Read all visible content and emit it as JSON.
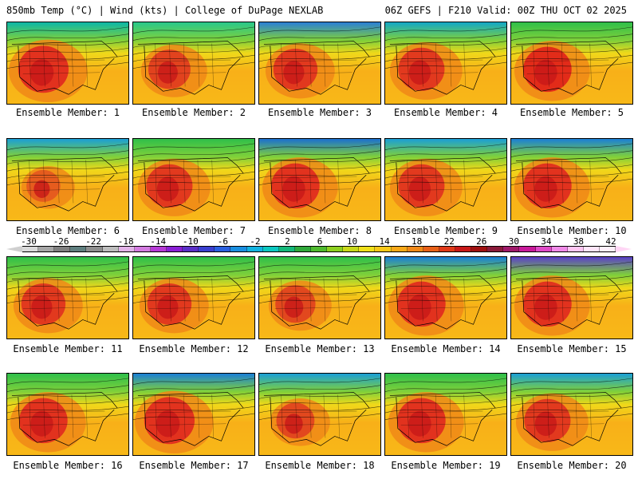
{
  "header": {
    "left": "850mb Temp (°C) | Wind (kts) | College of DuPage NEXLAB",
    "right": "06Z GEFS | F210 Valid: 00Z THU OCT 02 2025"
  },
  "panels": [
    {
      "caption": "Ensemble Member: 1",
      "north_color": "#0bb7a8",
      "hot": "#e0271f",
      "hot_extent": 1.0
    },
    {
      "caption": "Ensemble Member: 2",
      "north_color": "#28c88c",
      "hot": "#e03a1f",
      "hot_extent": 0.8
    },
    {
      "caption": "Ensemble Member: 3",
      "north_color": "#2a7fd6",
      "hot": "#e0301f",
      "hot_extent": 0.85
    },
    {
      "caption": "Ensemble Member: 4",
      "north_color": "#12a8c8",
      "hot": "#e0301f",
      "hot_extent": 0.9
    },
    {
      "caption": "Ensemble Member: 5",
      "north_color": "#2fbf4a",
      "hot": "#e0201a",
      "hot_extent": 0.95
    },
    {
      "caption": "Ensemble Member: 6",
      "north_color": "#1a9fd6",
      "hot": "#e4561f",
      "hot_extent": 0.6
    },
    {
      "caption": "Ensemble Member: 7",
      "north_color": "#2fbf4a",
      "hot": "#e0301f",
      "hot_extent": 0.9
    },
    {
      "caption": "Ensemble Member: 8",
      "north_color": "#1a6fd0",
      "hot": "#e0281f",
      "hot_extent": 0.95
    },
    {
      "caption": "Ensemble Member: 9",
      "north_color": "#1a9fd6",
      "hot": "#e0301f",
      "hot_extent": 0.9
    },
    {
      "caption": "Ensemble Member: 10",
      "north_color": "#1a7fd6",
      "hot": "#e0281f",
      "hot_extent": 0.95
    },
    {
      "caption": "Ensemble Member: 11",
      "north_color": "#2fbf4a",
      "hot": "#e0301f",
      "hot_extent": 0.85
    },
    {
      "caption": "Ensemble Member: 12",
      "north_color": "#2fbf4a",
      "hot": "#e0301f",
      "hot_extent": 0.85
    },
    {
      "caption": "Ensemble Member: 13",
      "north_color": "#2fbf4a",
      "hot": "#e0401f",
      "hot_extent": 0.75
    },
    {
      "caption": "Ensemble Member: 14",
      "north_color": "#1a7fd6",
      "hot": "#e0281f",
      "hot_extent": 0.95
    },
    {
      "caption": "Ensemble Member: 15",
      "north_color": "#5a3fc8",
      "hot": "#e0281f",
      "hot_extent": 0.95
    },
    {
      "caption": "Ensemble Member: 16",
      "north_color": "#2fbf4a",
      "hot": "#e0281f",
      "hot_extent": 0.95
    },
    {
      "caption": "Ensemble Member: 17",
      "north_color": "#1a7fd6",
      "hot": "#e0281f",
      "hot_extent": 1.0
    },
    {
      "caption": "Ensemble Member: 18",
      "north_color": "#1a9fd6",
      "hot": "#e0401f",
      "hot_extent": 0.7
    },
    {
      "caption": "Ensemble Member: 19",
      "north_color": "#2fbf4a",
      "hot": "#e0281f",
      "hot_extent": 0.95
    },
    {
      "caption": "Ensemble Member: 20",
      "north_color": "#1a9fd6",
      "hot": "#e0301f",
      "hot_extent": 0.9
    }
  ],
  "colorbar": {
    "tick_labels": [
      "-30",
      "-26",
      "-22",
      "-18",
      "-14",
      "-10",
      "-6",
      "-2",
      "2",
      "6",
      "10",
      "14",
      "18",
      "22",
      "26",
      "30",
      "34",
      "38",
      "42"
    ],
    "colors": [
      "#d9d9d9",
      "#a6a6a6",
      "#7f7f7f",
      "#5f7f7f",
      "#8e8e8e",
      "#bdbdbd",
      "#e2b3e8",
      "#d37be0",
      "#b63ad6",
      "#8a1fd6",
      "#5a2fc8",
      "#3a3fd0",
      "#2a60e0",
      "#1a8fe0",
      "#12b3e0",
      "#0bc8c0",
      "#14b87a",
      "#2fa83a",
      "#4fba2f",
      "#8ed01f",
      "#c8d81a",
      "#f0e01a",
      "#f8c818",
      "#f8a818",
      "#f08818",
      "#e86018",
      "#e03818",
      "#c81818",
      "#a01010",
      "#8a1a3a",
      "#a01a6a",
      "#c81a9a",
      "#e04ac8",
      "#f08ae8",
      "#ffc6f2",
      "#ffe6fa",
      "#fff0fc"
    ]
  }
}
